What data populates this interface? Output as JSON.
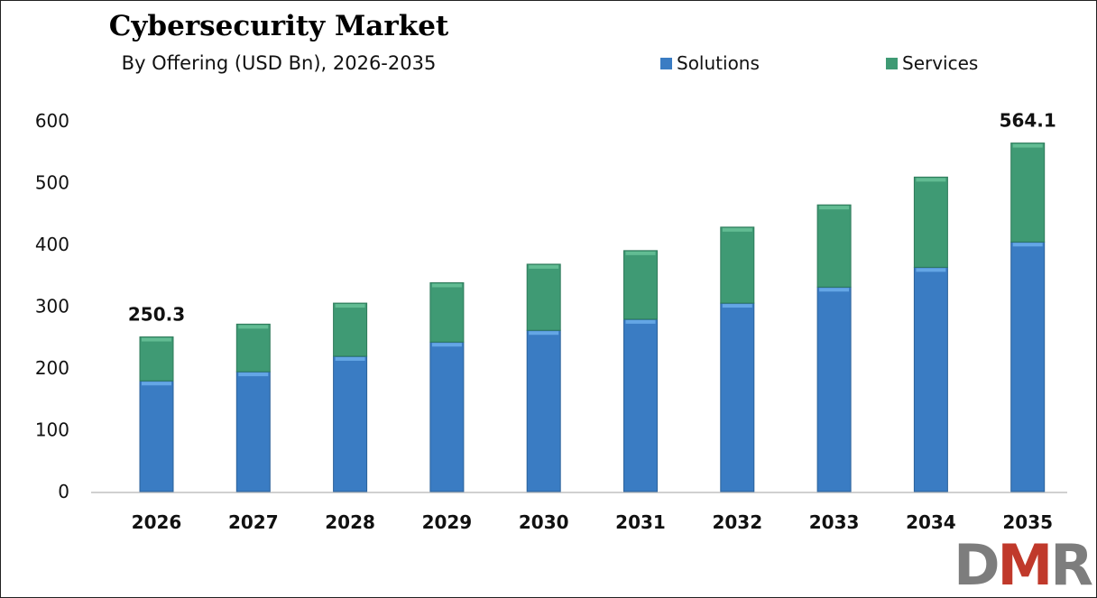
{
  "chart_data": {
    "type": "bar",
    "stacked": true,
    "title": "Cybersecurity Market",
    "subtitle": "By Offering (USD Bn), 2026-2035",
    "xlabel": "",
    "ylabel": "",
    "categories": [
      "2026",
      "2027",
      "2028",
      "2029",
      "2030",
      "2031",
      "2032",
      "2033",
      "2034",
      "2035"
    ],
    "series": [
      {
        "name": "Solutions",
        "color": "#3a7cc3",
        "values": [
          179.2,
          194,
          219,
          242,
          261,
          279,
          305,
          331,
          363,
          404
        ]
      },
      {
        "name": "Services",
        "color": "#3f9a74",
        "values": [
          71.1,
          77,
          86,
          96,
          107,
          111,
          123,
          133,
          146,
          160.1
        ]
      }
    ],
    "data_labels": [
      {
        "category": "2026",
        "text": "250.3"
      },
      {
        "category": "2035",
        "text": "564.1"
      }
    ],
    "ylim": [
      0,
      600
    ],
    "yticks": [
      "0",
      "100",
      "200",
      "300",
      "400",
      "500",
      "600"
    ],
    "grid": false,
    "legend": "top-right"
  },
  "logo": {
    "text": "DMR",
    "colors": [
      "#7d7d7d",
      "#c0392b",
      "#7d7d7d"
    ]
  }
}
